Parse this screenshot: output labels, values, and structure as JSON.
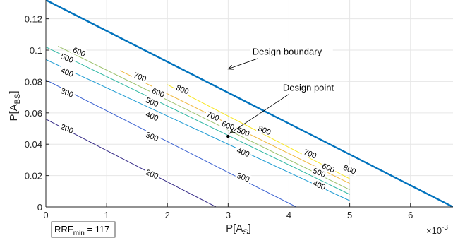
{
  "chart_data": {
    "type": "line",
    "title": "",
    "xlabel": "P[A",
    "xlabel_sub": "S",
    "xlabel_end": "]",
    "ylabel": "P[A",
    "ylabel_sub": "BS",
    "ylabel_end": "]",
    "x_exponent_label": "×10",
    "x_exponent_power": "-3",
    "xlim": [
      0,
      6.7
    ],
    "ylim": [
      0,
      0.132
    ],
    "xticks": [
      0,
      1,
      2,
      3,
      4,
      5,
      6
    ],
    "xtick_labels": [
      "0",
      "1",
      "2",
      "3",
      "4",
      "5",
      "6"
    ],
    "yticks": [
      0,
      0.02,
      0.04,
      0.06,
      0.08,
      0.1,
      0.12
    ],
    "ytick_labels": [
      "0",
      "0.02",
      "0.04",
      "0.06",
      "0.08",
      "0.1",
      "0.12"
    ],
    "grid": true,
    "boundary": {
      "name": "Design boundary",
      "color": "#0072BD",
      "x": [
        0,
        6.7
      ],
      "y": [
        0.132,
        0
      ]
    },
    "contours": [
      {
        "level": "200",
        "color": "#352A87",
        "x": [
          0,
          2.8
        ],
        "y": [
          0.056,
          0
        ]
      },
      {
        "level": "300",
        "color": "#3B62D1",
        "x": [
          0,
          4.12
        ],
        "y": [
          0.081,
          0
        ]
      },
      {
        "level": "400",
        "color": "#1D9BD3",
        "x": [
          0,
          5.0
        ],
        "y": [
          0.094,
          0.004
        ]
      },
      {
        "level": "500",
        "color": "#2EB7A3",
        "x": [
          0,
          5.0
        ],
        "y": [
          0.102,
          0.008
        ]
      },
      {
        "level": "600",
        "color": "#9BC16A",
        "x": [
          0.2,
          5.0
        ],
        "y": [
          0.1025,
          0.011
        ]
      },
      {
        "level": "700",
        "color": "#F0B83E",
        "x": [
          1.22,
          5.0
        ],
        "y": [
          0.087,
          0.015
        ]
      },
      {
        "level": "800",
        "color": "#F8E621",
        "x": [
          2.0,
          5.0
        ],
        "y": [
          0.078,
          0.018
        ]
      }
    ],
    "contour_labels": [
      {
        "text": "200",
        "x": 0.35,
        "y": 0.05,
        "angle": 22
      },
      {
        "text": "200",
        "x": 1.75,
        "y": 0.021,
        "angle": 22
      },
      {
        "text": "300",
        "x": 0.35,
        "y": 0.073,
        "angle": 22
      },
      {
        "text": "300",
        "x": 1.75,
        "y": 0.045,
        "angle": 22
      },
      {
        "text": "300",
        "x": 3.25,
        "y": 0.019,
        "angle": 22
      },
      {
        "text": "400",
        "x": 0.35,
        "y": 0.086,
        "angle": 22
      },
      {
        "text": "400",
        "x": 1.75,
        "y": 0.058,
        "angle": 22
      },
      {
        "text": "400",
        "x": 3.25,
        "y": 0.035,
        "angle": 22
      },
      {
        "text": "400",
        "x": 4.5,
        "y": 0.014,
        "angle": 22
      },
      {
        "text": "500",
        "x": 0.35,
        "y": 0.095,
        "angle": 22
      },
      {
        "text": "500",
        "x": 1.75,
        "y": 0.067,
        "angle": 22
      },
      {
        "text": "500",
        "x": 3.25,
        "y": 0.048,
        "angle": 22
      },
      {
        "text": "500",
        "x": 4.5,
        "y": 0.022,
        "angle": 22
      },
      {
        "text": "600",
        "x": 0.55,
        "y": 0.099,
        "angle": 22
      },
      {
        "text": "600",
        "x": 1.85,
        "y": 0.073,
        "angle": 22
      },
      {
        "text": "600",
        "x": 3.0,
        "y": 0.052,
        "angle": 22
      },
      {
        "text": "600",
        "x": 4.65,
        "y": 0.025,
        "angle": 22
      },
      {
        "text": "700",
        "x": 1.55,
        "y": 0.083,
        "angle": 22
      },
      {
        "text": "700",
        "x": 2.75,
        "y": 0.058,
        "angle": 22
      },
      {
        "text": "700",
        "x": 4.35,
        "y": 0.034,
        "angle": 22
      },
      {
        "text": "800",
        "x": 2.25,
        "y": 0.075,
        "angle": 22
      },
      {
        "text": "800",
        "x": 3.6,
        "y": 0.049,
        "angle": 22
      },
      {
        "text": "800",
        "x": 5.0,
        "y": 0.024,
        "angle": 22
      }
    ],
    "design_point": {
      "label": "Design point",
      "x": 3.0,
      "y": 0.045
    },
    "annotations": [
      {
        "text": "Design boundary",
        "x": 3.4,
        "y": 0.097,
        "arrow_to": [
          3.0,
          0.088
        ]
      },
      {
        "text": "Design point",
        "x": 3.9,
        "y": 0.074,
        "arrow_to": [
          3.03,
          0.047
        ]
      }
    ],
    "rrf_label": "RRF",
    "rrf_sub": "min",
    "rrf_value": " = 117"
  }
}
